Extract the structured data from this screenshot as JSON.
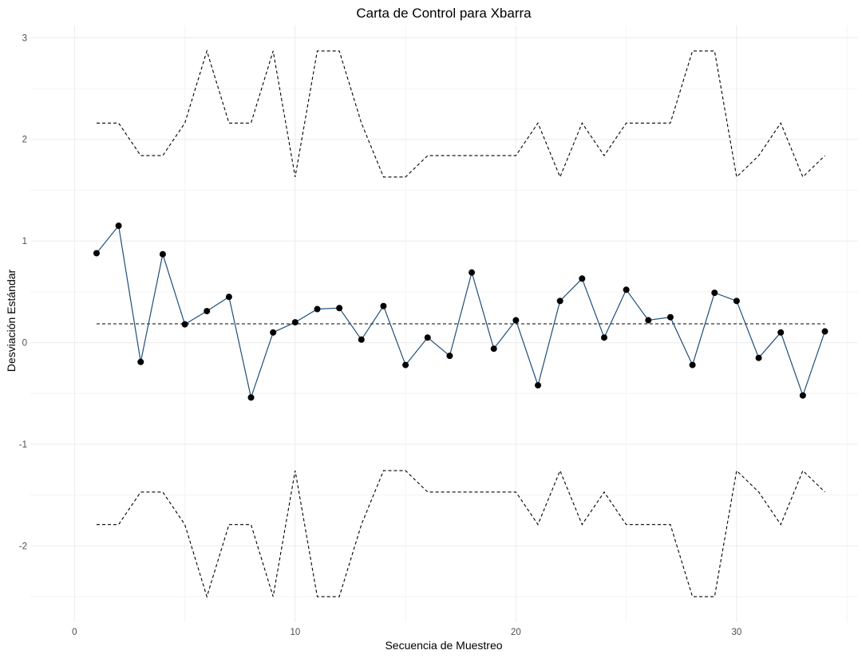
{
  "chart_data": {
    "type": "line",
    "title": "Carta de Control para Xbarra",
    "xlabel": "Secuencia de Muestreo",
    "ylabel": "Desviación Estándar",
    "xlim": [
      -2,
      35.5
    ],
    "ylim": [
      -2.75,
      3.12
    ],
    "x_ticks": [
      0,
      10,
      20,
      30
    ],
    "y_ticks": [
      -2,
      -1,
      0,
      1,
      2,
      3
    ],
    "grid": true,
    "legend": "none",
    "x": [
      1,
      2,
      3,
      4,
      5,
      6,
      7,
      8,
      9,
      10,
      11,
      12,
      13,
      14,
      15,
      16,
      17,
      18,
      19,
      20,
      21,
      22,
      23,
      24,
      25,
      26,
      27,
      28,
      29,
      30,
      31,
      32,
      33,
      34
    ],
    "series": [
      {
        "role": "data",
        "values": [
          0.88,
          1.15,
          -0.19,
          0.87,
          0.18,
          0.31,
          0.45,
          -0.54,
          0.1,
          0.2,
          0.33,
          0.34,
          0.03,
          0.36,
          -0.22,
          0.05,
          -0.13,
          0.69,
          -0.06,
          0.22,
          -0.42,
          0.41,
          0.63,
          0.05,
          0.52,
          0.22,
          0.25,
          -0.22,
          0.49,
          0.41,
          -0.15,
          0.1,
          -0.52,
          0.11
        ],
        "color": "#1f4e79"
      },
      {
        "role": "ucl",
        "values": [
          2.16,
          2.16,
          1.84,
          1.84,
          2.16,
          2.87,
          2.16,
          2.16,
          2.87,
          1.63,
          2.87,
          2.87,
          2.16,
          1.63,
          1.63,
          1.84,
          1.84,
          1.84,
          1.84,
          1.84,
          2.16,
          1.63,
          2.16,
          1.84,
          2.16,
          2.16,
          2.16,
          2.87,
          2.87,
          1.63,
          1.84,
          2.16,
          1.63,
          1.84
        ],
        "color": "#000000"
      },
      {
        "role": "lcl",
        "values": [
          -1.79,
          -1.79,
          -1.47,
          -1.47,
          -1.79,
          -2.5,
          -1.79,
          -1.79,
          -2.5,
          -1.26,
          -2.5,
          -2.5,
          -1.79,
          -1.26,
          -1.26,
          -1.47,
          -1.47,
          -1.47,
          -1.47,
          -1.47,
          -1.79,
          -1.26,
          -1.79,
          -1.47,
          -1.79,
          -1.79,
          -1.79,
          -2.5,
          -2.5,
          -1.26,
          -1.47,
          -1.79,
          -1.26,
          -1.47
        ],
        "color": "#000000"
      }
    ],
    "center_line": 0.185
  }
}
